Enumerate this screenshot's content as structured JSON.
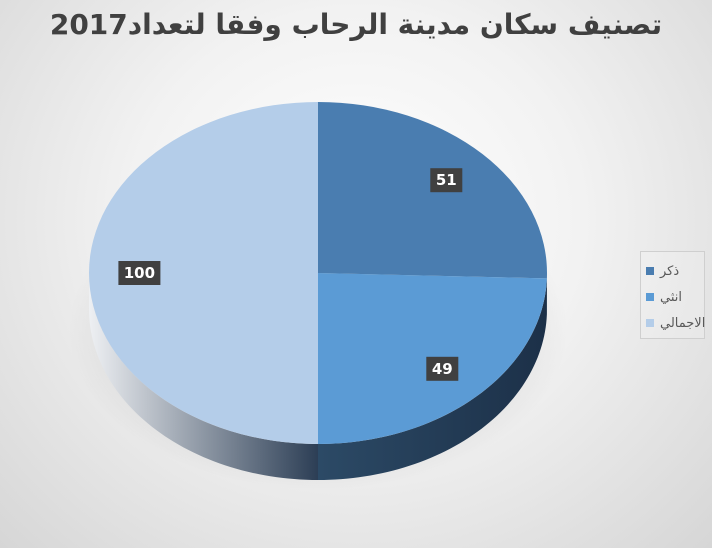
{
  "chart_data": {
    "type": "pie",
    "title": "تصنيف سكان مدينة الرحاب وفقا لتعداد2017",
    "series": [
      {
        "name": "ذكر",
        "value": 51,
        "color": "#4a7db0"
      },
      {
        "name": "انثي",
        "value": 49,
        "color": "#5b9bd5"
      },
      {
        "name": "الاجمالي",
        "value": 100,
        "color": "#b4cde9"
      }
    ],
    "legend_position": "right",
    "style": "3d"
  }
}
